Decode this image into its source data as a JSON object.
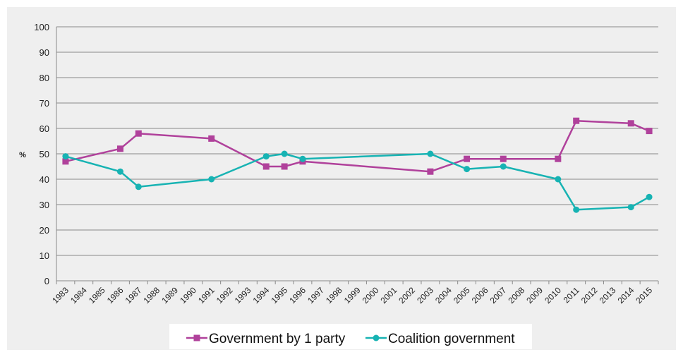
{
  "chart_data": {
    "type": "line",
    "title": "",
    "xlabel": "",
    "ylabel": "%",
    "ylim": [
      0,
      100
    ],
    "yticks": [
      0,
      10,
      20,
      30,
      40,
      50,
      60,
      70,
      80,
      90,
      100
    ],
    "categories": [
      "1983",
      "1984",
      "1985",
      "1986",
      "1987",
      "1988",
      "1989",
      "1990",
      "1991",
      "1992",
      "1993",
      "1994",
      "1995",
      "1996",
      "1997",
      "1998",
      "1999",
      "2000",
      "2001",
      "2002",
      "2003",
      "2004",
      "2005",
      "2006",
      "2007",
      "2008",
      "2009",
      "2010",
      "2011",
      "2012",
      "2013",
      "2014",
      "2015"
    ],
    "grid": true,
    "legend_position": "bottom",
    "series": [
      {
        "name": "Government by 1 party",
        "color": "#b0419b",
        "marker": "square",
        "values": [
          47,
          null,
          null,
          52,
          58,
          null,
          null,
          null,
          56,
          null,
          null,
          45,
          45,
          47,
          null,
          null,
          null,
          null,
          null,
          null,
          43,
          null,
          48,
          null,
          48,
          null,
          null,
          48,
          63,
          null,
          null,
          62,
          59
        ]
      },
      {
        "name": "Coalition government",
        "color": "#17b3b3",
        "marker": "circle",
        "values": [
          49,
          null,
          null,
          43,
          37,
          null,
          null,
          null,
          40,
          null,
          null,
          49,
          50,
          48,
          null,
          null,
          null,
          null,
          null,
          null,
          50,
          null,
          44,
          null,
          45,
          null,
          null,
          40,
          28,
          null,
          null,
          29,
          33
        ]
      }
    ]
  }
}
